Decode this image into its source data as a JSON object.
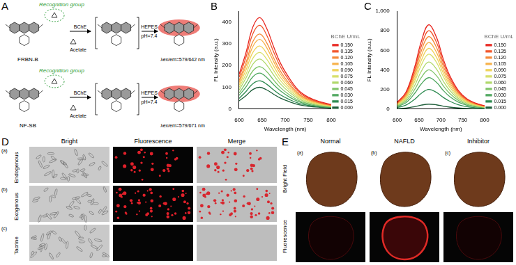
{
  "panels": {
    "A": {
      "label": "A",
      "recognition_label": "Recognition group",
      "enzyme": "BChE",
      "buffer": "HEPES",
      "ph": "pH=7.4",
      "byproduct": "Acetate",
      "probes": [
        {
          "name": "FRBN-B",
          "emission": "λex/em=579/642 nm"
        },
        {
          "name": "NF-SB",
          "emission": "λex/em=579/671 nm"
        }
      ]
    },
    "B": {
      "label": "B"
    },
    "C": {
      "label": "C"
    },
    "D": {
      "label": "D",
      "columns": [
        "Bright",
        "Fluorescence",
        "Merge"
      ],
      "rows": [
        {
          "tag": "(a)",
          "name": "Endogenous"
        },
        {
          "tag": "(b)",
          "name": "Exogenous"
        },
        {
          "tag": "(c)",
          "name": "Tacrine"
        }
      ]
    },
    "E": {
      "label": "E",
      "columns": [
        "Normal",
        "NAFLD",
        "Inhibitor"
      ],
      "tags": [
        "(a)",
        "(b)",
        "(c)"
      ],
      "rows": [
        "Bright Field",
        "Fluorescence"
      ]
    }
  },
  "chart_data": [
    {
      "type": "line",
      "x_label": "Wavelength (nm)",
      "y_label": "FL Intensity (a.u.)",
      "legend_title": "BChE U/mL",
      "legend": "right",
      "grid": false,
      "x": [
        600,
        615,
        630,
        645,
        660,
        675,
        690,
        710,
        730,
        750,
        775,
        800
      ],
      "xlim": [
        600,
        800
      ],
      "xticks": [
        600,
        650,
        700,
        750,
        800
      ],
      "ylim": [
        0,
        450
      ],
      "yticks": [
        0,
        100,
        200,
        300,
        400
      ],
      "series": [
        {
          "name": "0.150",
          "color": "#e8261f",
          "values": [
            160,
            260,
            378,
            420,
            370,
            286,
            210,
            139,
            84,
            55,
            34,
            21
          ]
        },
        {
          "name": "0.135",
          "color": "#f2552a",
          "values": [
            146,
            239,
            347,
            385,
            339,
            262,
            193,
            127,
            77,
            50,
            31,
            19
          ]
        },
        {
          "name": "0.120",
          "color": "#f58a3a",
          "values": [
            131,
            214,
            311,
            345,
            304,
            235,
            173,
            114,
            69,
            45,
            28,
            17
          ]
        },
        {
          "name": "0.105",
          "color": "#f7b24a",
          "values": [
            122,
            198,
            288,
            320,
            282,
            218,
            160,
            106,
            64,
            42,
            26,
            16
          ]
        },
        {
          "name": "0.090",
          "color": "#f0d25a",
          "values": [
            110,
            180,
            261,
            290,
            255,
            197,
            145,
            96,
            58,
            38,
            23,
            15
          ]
        },
        {
          "name": "0.075",
          "color": "#d8e06a",
          "values": [
            99,
            161,
            234,
            260,
            229,
            177,
            130,
            86,
            52,
            34,
            21,
            13
          ]
        },
        {
          "name": "0.060",
          "color": "#b0d86a",
          "values": [
            87,
            143,
            207,
            230,
            202,
            156,
            115,
            76,
            46,
            30,
            18,
            12
          ]
        },
        {
          "name": "0.045",
          "color": "#80c46a",
          "values": [
            74,
            121,
            176,
            195,
            172,
            133,
            98,
            64,
            39,
            25,
            16,
            10
          ]
        },
        {
          "name": "0.030",
          "color": "#50a860",
          "values": [
            63,
            102,
            149,
            165,
            145,
            112,
            83,
            54,
            33,
            21,
            13,
            8
          ]
        },
        {
          "name": "0.015",
          "color": "#2d8a50",
          "values": [
            49,
            81,
            117,
            130,
            114,
            88,
            65,
            43,
            26,
            17,
            10,
            7
          ]
        },
        {
          "name": "0.000",
          "color": "#1e5e3a",
          "values": [
            38,
            62,
            90,
            100,
            88,
            68,
            50,
            33,
            20,
            13,
            8,
            5
          ]
        }
      ]
    },
    {
      "type": "line",
      "x_label": "Wavelength (nm)",
      "y_label": "FL Intensity (a.u.)",
      "legend_title": "BChE U/mL",
      "legend": "right",
      "grid": false,
      "x": [
        600,
        620,
        640,
        655,
        672,
        690,
        705,
        720,
        740,
        760,
        780,
        800
      ],
      "xlim": [
        600,
        800
      ],
      "xticks": [
        600,
        650,
        700,
        750,
        800
      ],
      "ylim": [
        0,
        1000
      ],
      "yticks": [
        0,
        200,
        400,
        600,
        800,
        1000
      ],
      "series": [
        {
          "name": "0.150",
          "color": "#e8261f",
          "values": [
            69,
            172,
            430,
            688,
            860,
            731,
            516,
            344,
            189,
            103,
            60,
            34
          ]
        },
        {
          "name": "0.135",
          "color": "#f2552a",
          "values": [
            64,
            160,
            400,
            640,
            800,
            680,
            480,
            320,
            176,
            96,
            56,
            32
          ]
        },
        {
          "name": "0.120",
          "color": "#f58a3a",
          "values": [
            59,
            148,
            370,
            592,
            740,
            629,
            444,
            296,
            163,
            89,
            52,
            30
          ]
        },
        {
          "name": "0.105",
          "color": "#f7b24a",
          "values": [
            54,
            136,
            340,
            544,
            680,
            578,
            408,
            272,
            150,
            82,
            48,
            27
          ]
        },
        {
          "name": "0.090",
          "color": "#f0d25a",
          "values": [
            50,
            124,
            310,
            496,
            620,
            527,
            372,
            248,
            136,
            74,
            43,
            25
          ]
        },
        {
          "name": "0.075",
          "color": "#d8e06a",
          "values": [
            45,
            112,
            280,
            448,
            560,
            476,
            336,
            224,
            123,
            67,
            39,
            22
          ]
        },
        {
          "name": "0.060",
          "color": "#b0d86a",
          "values": [
            38,
            96,
            240,
            384,
            480,
            408,
            288,
            192,
            106,
            58,
            34,
            19
          ]
        },
        {
          "name": "0.045",
          "color": "#80c46a",
          "values": [
            32,
            80,
            200,
            320,
            400,
            340,
            240,
            160,
            88,
            48,
            28,
            16
          ]
        },
        {
          "name": "0.030",
          "color": "#50a860",
          "values": [
            26,
            64,
            160,
            256,
            320,
            272,
            192,
            128,
            70,
            38,
            22,
            13
          ]
        },
        {
          "name": "0.015",
          "color": "#2d8a50",
          "values": [
            16,
            40,
            100,
            160,
            200,
            170,
            120,
            80,
            44,
            24,
            14,
            8
          ]
        },
        {
          "name": "0.000",
          "color": "#1e5e3a",
          "values": [
            4,
            10,
            25,
            40,
            50,
            43,
            30,
            20,
            11,
            6,
            4,
            2
          ]
        }
      ]
    }
  ]
}
